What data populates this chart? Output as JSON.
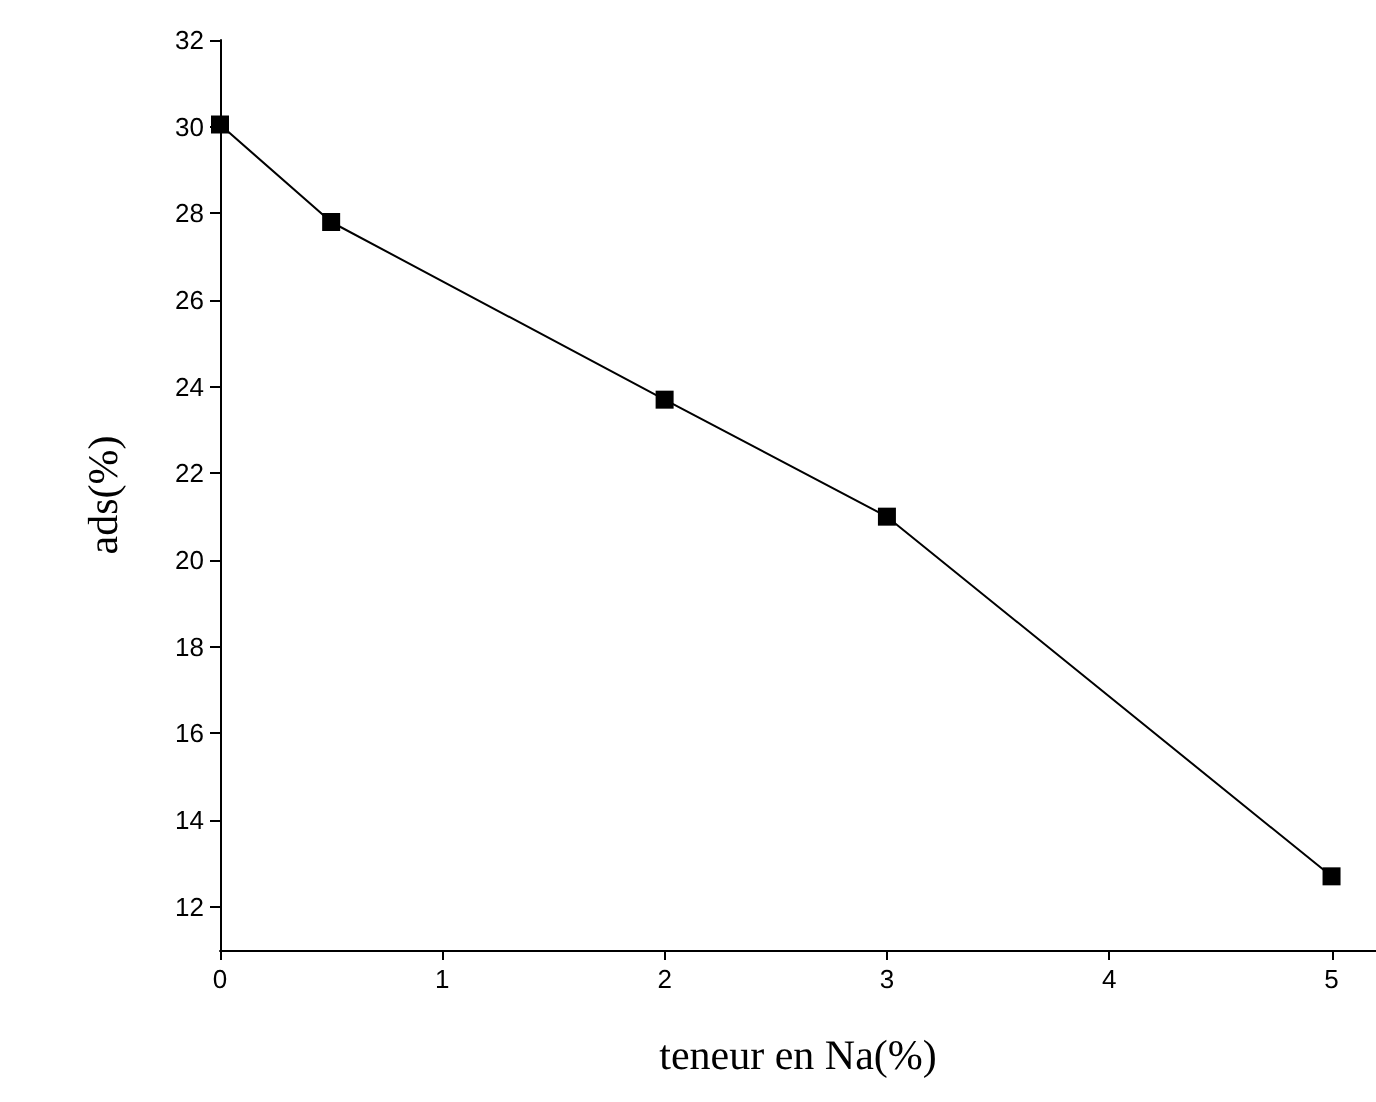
{
  "chart_data": {
    "type": "line",
    "xlabel": "teneur en Na(%)",
    "ylabel": "ads(%)",
    "x": [
      0,
      0.5,
      2,
      3,
      5
    ],
    "series": [
      {
        "color": "#000000",
        "values": [
          30.05,
          27.8,
          23.7,
          21.0,
          12.7
        ]
      }
    ],
    "xlim": [
      0,
      5.2
    ],
    "xticks": [
      0,
      1,
      2,
      3,
      4,
      5
    ],
    "ylim": [
      11,
      32
    ],
    "yticks": [
      12,
      14,
      16,
      18,
      20,
      22,
      24,
      26,
      28,
      30,
      32
    ],
    "marker": "square",
    "line_style": "solid",
    "grid": false
  }
}
